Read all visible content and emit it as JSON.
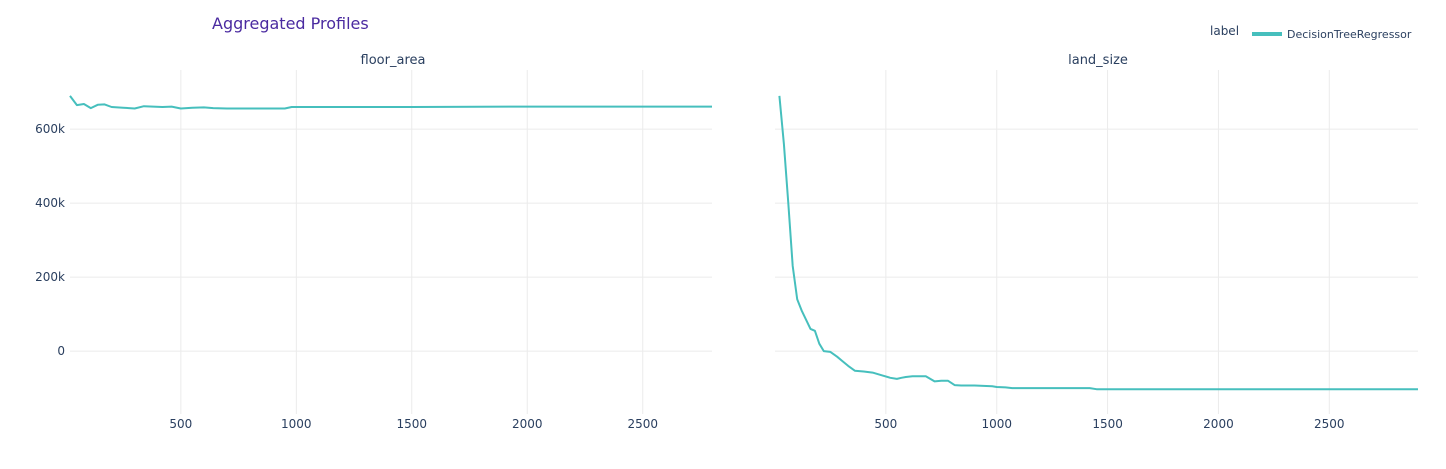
{
  "chart_data": {
    "type": "line",
    "title": "Aggregated Profiles",
    "legend": {
      "title": "label",
      "entries": [
        "DecisionTreeRegressor"
      ],
      "placement": "top-right"
    },
    "color": "#46bfbd",
    "grid": true,
    "ylim": [
      -170000,
      760000
    ],
    "yticks": [
      0,
      200000,
      400000,
      600000
    ],
    "ytick_labels": [
      "0",
      "200k",
      "400k",
      "600k"
    ],
    "panels": [
      {
        "subtitle": "floor_area",
        "xlim": [
          20,
          2800
        ],
        "xticks": [
          500,
          1000,
          1500,
          2000,
          2500
        ],
        "xtick_labels": [
          "500",
          "1000",
          "1500",
          "2000",
          "2500"
        ],
        "series": [
          {
            "name": "DecisionTreeRegressor",
            "x": [
              20,
              50,
              80,
              110,
              140,
              170,
              200,
              250,
              300,
              340,
              380,
              420,
              460,
              500,
              550,
              600,
              640,
              700,
              750,
              800,
              850,
              900,
              950,
              980,
              1050,
              1500,
              2000,
              2500,
              2800
            ],
            "y": [
              690000,
              665000,
              668000,
              657000,
              666000,
              667000,
              660000,
              658000,
              656000,
              662000,
              661000,
              660000,
              661000,
              656000,
              658000,
              659000,
              657000,
              656000,
              656000,
              656000,
              656000,
              656000,
              656000,
              660000,
              660000,
              660000,
              661000,
              661000,
              661000
            ]
          }
        ]
      },
      {
        "subtitle": "land_size",
        "xlim": [
          0,
          2900
        ],
        "xticks": [
          500,
          1000,
          1500,
          2000,
          2500
        ],
        "xtick_labels": [
          "500",
          "1000",
          "1500",
          "2000",
          "2500"
        ],
        "series": [
          {
            "name": "DecisionTreeRegressor",
            "x": [
              20,
              40,
              60,
              80,
              100,
              120,
              160,
              180,
              200,
              220,
              250,
              280,
              300,
              330,
              360,
              400,
              440,
              480,
              520,
              550,
              570,
              590,
              620,
              680,
              720,
              750,
              780,
              810,
              840,
              900,
              980,
              1000,
              1040,
              1070,
              1200,
              1420,
              1450,
              2000,
              2500,
              2900
            ],
            "y": [
              690000,
              560000,
              400000,
              230000,
              140000,
              110000,
              60000,
              55000,
              20000,
              0,
              -2000,
              -15000,
              -25000,
              -40000,
              -53000,
              -55000,
              -58000,
              -65000,
              -72000,
              -75000,
              -72000,
              -70000,
              -68000,
              -68000,
              -82000,
              -80000,
              -80000,
              -92000,
              -93000,
              -93000,
              -95000,
              -97000,
              -98000,
              -100000,
              -100000,
              -100000,
              -103000,
              -103000,
              -103000,
              -103000
            ]
          }
        ]
      }
    ]
  }
}
